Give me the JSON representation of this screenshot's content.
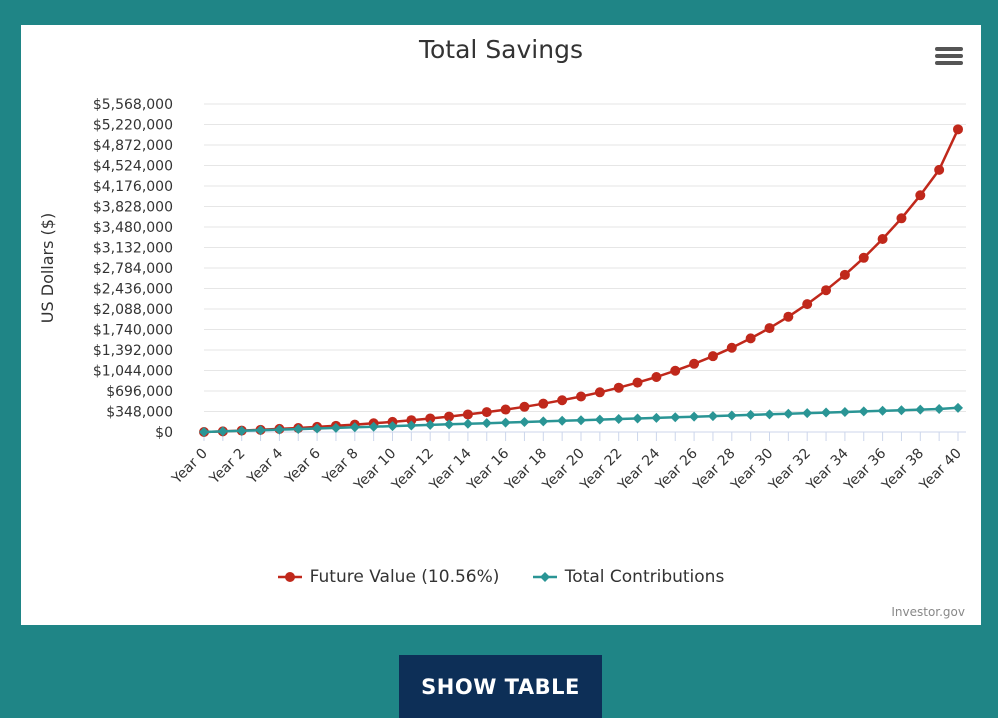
{
  "chart_data": {
    "type": "line",
    "title": "Total Savings",
    "xlabel": "",
    "ylabel": "US Dollars ($)",
    "categories": [
      "Year 0",
      "Year 1",
      "Year 2",
      "Year 3",
      "Year 4",
      "Year 5",
      "Year 6",
      "Year 7",
      "Year 8",
      "Year 9",
      "Year 10",
      "Year 11",
      "Year 12",
      "Year 13",
      "Year 14",
      "Year 15",
      "Year 16",
      "Year 17",
      "Year 18",
      "Year 19",
      "Year 20",
      "Year 21",
      "Year 22",
      "Year 23",
      "Year 24",
      "Year 25",
      "Year 26",
      "Year 27",
      "Year 28",
      "Year 29",
      "Year 30",
      "Year 31",
      "Year 32",
      "Year 33",
      "Year 34",
      "Year 35",
      "Year 36",
      "Year 37",
      "Year 38",
      "Year 39",
      "Year 40"
    ],
    "x_tick_labels": [
      "Year 0",
      "Year 2",
      "Year 4",
      "Year 6",
      "Year 8",
      "Year 10",
      "Year 12",
      "Year 14",
      "Year 16",
      "Year 18",
      "Year 20",
      "Year 22",
      "Year 24",
      "Year 26",
      "Year 28",
      "Year 30",
      "Year 32",
      "Year 34",
      "Year 36",
      "Year 38",
      "Year 40"
    ],
    "y_tick_labels": [
      "$0",
      "$348,000",
      "$696,000",
      "$1,044,000",
      "$1,392,000",
      "$1,740,000",
      "$2,088,000",
      "$2,436,000",
      "$2,784,000",
      "$3,132,000",
      "$3,480,000",
      "$3,828,000",
      "$4,176,000",
      "$4,524,000",
      "$4,872,000",
      "$5,220,000",
      "$5,568,000"
    ],
    "ylim": [
      0,
      5568000
    ],
    "grid": true,
    "legend": "bottom",
    "series": [
      {
        "name": "Future Value (10.56%)",
        "color": "#c0281b",
        "marker": "circle",
        "values": [
          0,
          11000,
          24000,
          37000,
          52000,
          68000,
          86000,
          105000,
          125000,
          148000,
          172000,
          200000,
          230000,
          262000,
          298000,
          337000,
          381000,
          428000,
          481000,
          539000,
          603000,
          674000,
          752000,
          839000,
          934000,
          1040000,
          1158000,
          1287000,
          1430000,
          1589000,
          1764000,
          1957000,
          2171000,
          2407000,
          2668000,
          2957000,
          3276000,
          3628000,
          4018000,
          4450000,
          5138000
        ]
      },
      {
        "name": "Total Contributions",
        "color": "#2a9595",
        "marker": "diamond",
        "values": [
          0,
          10000,
          20000,
          30000,
          40000,
          50000,
          60000,
          70000,
          80000,
          90000,
          100000,
          110000,
          120000,
          130000,
          140000,
          150000,
          160000,
          170000,
          180000,
          190000,
          200000,
          210000,
          220000,
          230000,
          240000,
          250000,
          260000,
          270000,
          280000,
          290000,
          300000,
          310000,
          320000,
          330000,
          340000,
          350000,
          360000,
          370000,
          380000,
          390000,
          410000
        ]
      }
    ]
  },
  "credits": "Investor.gov",
  "menu_icon": "hamburger-menu-icon",
  "show_table_label": "SHOW TABLE"
}
